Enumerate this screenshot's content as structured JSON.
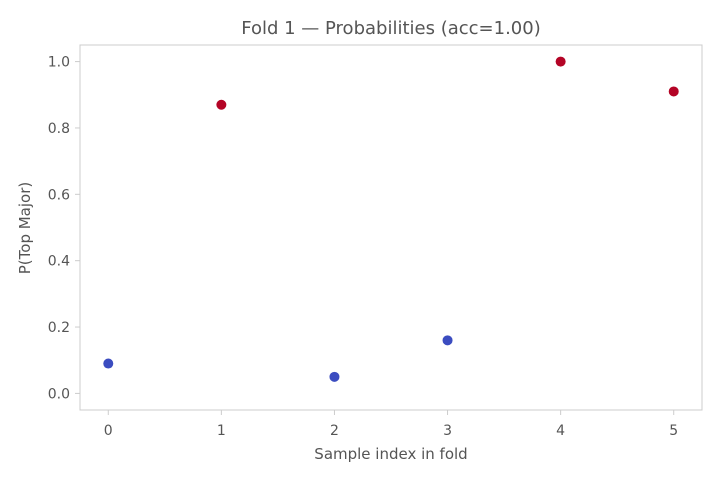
{
  "colors": {
    "class_0": "#3b4cc0",
    "class_1": "#b40426",
    "frame": "#cccccc",
    "text": "#555555"
  },
  "chart_data": {
    "type": "scatter",
    "title": "Fold 1 — Probabilities (acc=1.00)",
    "xlabel": "Sample index in fold",
    "ylabel": "P(Top Major)",
    "xlim": [
      -0.25,
      5.25
    ],
    "ylim": [
      -0.05,
      1.05
    ],
    "xticks": [
      "0",
      "1",
      "2",
      "3",
      "4",
      "5"
    ],
    "yticks": [
      "0.0",
      "0.2",
      "0.4",
      "0.6",
      "0.8",
      "1.0"
    ],
    "grid": false,
    "points": [
      {
        "x": 0,
        "y": 0.09,
        "class": "class_0"
      },
      {
        "x": 1,
        "y": 0.87,
        "class": "class_1"
      },
      {
        "x": 2,
        "y": 0.05,
        "class": "class_0"
      },
      {
        "x": 3,
        "y": 0.16,
        "class": "class_0"
      },
      {
        "x": 4,
        "y": 1.0,
        "class": "class_1"
      },
      {
        "x": 5,
        "y": 0.91,
        "class": "class_1"
      }
    ]
  }
}
